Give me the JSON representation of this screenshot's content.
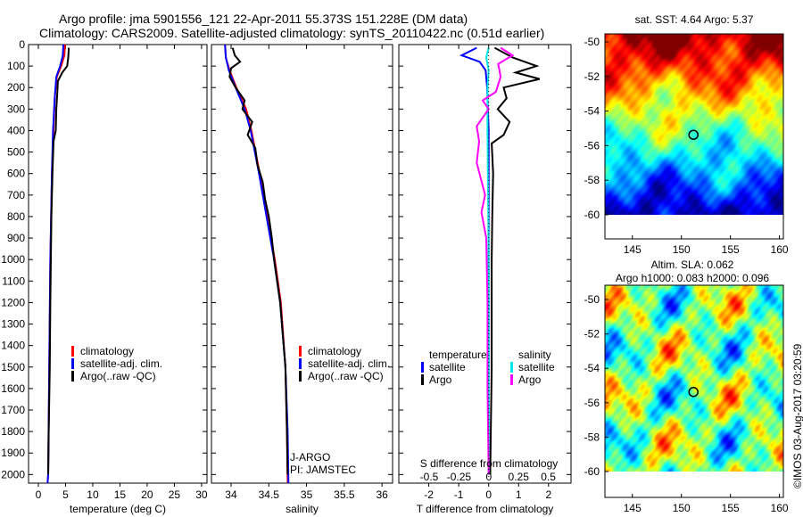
{
  "title_line1": "Argo profile: jma 5901556_121 22-Apr-2011 55.373S 151.228E (DM data)",
  "title_line2": "Climatology: CARS2009. Satellite-adjusted climatology: synTS_20110422.nc (0.51d earlier)",
  "timestamp": "©IMOS 03-Aug-2017 03:20:59",
  "colors": {
    "climatology": "#ff0000",
    "satellite": "#0000ff",
    "argo": "#000000",
    "sat_salinity": "#00e5e5",
    "argo_salinity": "#ff00ff"
  },
  "chart_data": [
    {
      "type": "line",
      "xlabel": "temperature (deg C)",
      "ylabel": "",
      "xlim": [
        -1.8,
        31
      ],
      "ylim": [
        2040,
        0
      ],
      "xticks": [
        "0",
        "5",
        "10",
        "15",
        "20",
        "25",
        "30"
      ],
      "yticks": [
        "0",
        "100",
        "200",
        "300",
        "400",
        "500",
        "600",
        "700",
        "800",
        "900",
        "1000",
        "1100",
        "1200",
        "1300",
        "1400",
        "1500",
        "1600",
        "1700",
        "1800",
        "1900",
        "2000"
      ],
      "legend": [
        "climatology",
        "satellite-adj. clim.",
        "Argo(..raw -QC)"
      ],
      "series": [
        {
          "name": "climatology",
          "color": "#ff0000",
          "points": [
            [
              0,
              4.9
            ],
            [
              50,
              4.8
            ],
            [
              100,
              4.2
            ],
            [
              150,
              3.4
            ],
            [
              250,
              3.0
            ],
            [
              400,
              2.8
            ],
            [
              600,
              2.5
            ],
            [
              1000,
              2.2
            ],
            [
              1500,
              2.0
            ],
            [
              2000,
              1.8
            ],
            [
              2040,
              1.7
            ]
          ]
        },
        {
          "name": "satellite-adj. clim.",
          "color": "#0000ff",
          "points": [
            [
              0,
              4.6
            ],
            [
              50,
              4.5
            ],
            [
              100,
              4.0
            ],
            [
              150,
              3.3
            ],
            [
              250,
              3.0
            ],
            [
              400,
              2.7
            ],
            [
              600,
              2.5
            ],
            [
              1000,
              2.2
            ],
            [
              1500,
              2.0
            ],
            [
              2000,
              1.8
            ],
            [
              2040,
              1.7
            ]
          ]
        },
        {
          "name": "Argo(..raw -QC)",
          "color": "#000000",
          "points": [
            [
              15,
              5.6
            ],
            [
              60,
              5.5
            ],
            [
              100,
              5.3
            ],
            [
              130,
              4.4
            ],
            [
              170,
              3.6
            ],
            [
              220,
              3.5
            ],
            [
              300,
              3.3
            ],
            [
              400,
              3.2
            ],
            [
              450,
              2.8
            ],
            [
              600,
              2.6
            ],
            [
              800,
              2.4
            ],
            [
              1000,
              2.3
            ],
            [
              1200,
              2.2
            ],
            [
              1500,
              2.1
            ],
            [
              1800,
              1.9
            ],
            [
              2000,
              1.8
            ]
          ]
        }
      ]
    },
    {
      "type": "line",
      "xlabel": "salinity",
      "xlim": [
        33.74,
        36.14
      ],
      "ylim": [
        2040,
        0
      ],
      "xticks": [
        "34",
        "34.5",
        "35",
        "35.5",
        "36"
      ],
      "legend": [
        "climatology",
        "satellite-adj. clim.",
        "Argo(..raw -QC)"
      ],
      "annotation": [
        "J-ARGO",
        "PI: JAMSTEC"
      ],
      "series": [
        {
          "name": "climatology",
          "color": "#ff0000",
          "points": [
            [
              0,
              33.92
            ],
            [
              60,
              33.93
            ],
            [
              120,
              33.98
            ],
            [
              200,
              34.07
            ],
            [
              300,
              34.2
            ],
            [
              400,
              34.27
            ],
            [
              600,
              34.38
            ],
            [
              800,
              34.48
            ],
            [
              1000,
              34.58
            ],
            [
              1200,
              34.66
            ],
            [
              1500,
              34.72
            ],
            [
              1800,
              34.74
            ],
            [
              2040,
              34.75
            ]
          ]
        },
        {
          "name": "satellite-adj. clim.",
          "color": "#0000ff",
          "points": [
            [
              0,
              33.92
            ],
            [
              60,
              33.93
            ],
            [
              120,
              33.97
            ],
            [
              200,
              34.06
            ],
            [
              300,
              34.18
            ],
            [
              400,
              34.26
            ],
            [
              600,
              34.37
            ],
            [
              800,
              34.47
            ],
            [
              1000,
              34.57
            ],
            [
              1200,
              34.65
            ],
            [
              1500,
              34.72
            ],
            [
              1800,
              34.75
            ],
            [
              2040,
              34.76
            ]
          ]
        },
        {
          "name": "Argo(..raw -QC)",
          "color": "#000000",
          "points": [
            [
              15,
              34.02
            ],
            [
              50,
              34.05
            ],
            [
              80,
              34.12
            ],
            [
              110,
              34.0
            ],
            [
              150,
              33.98
            ],
            [
              200,
              34.06
            ],
            [
              260,
              34.18
            ],
            [
              300,
              34.15
            ],
            [
              360,
              34.28
            ],
            [
              420,
              34.22
            ],
            [
              480,
              34.32
            ],
            [
              560,
              34.35
            ],
            [
              640,
              34.42
            ],
            [
              720,
              34.45
            ],
            [
              800,
              34.5
            ],
            [
              900,
              34.54
            ],
            [
              1000,
              34.57
            ],
            [
              1200,
              34.65
            ],
            [
              1500,
              34.72
            ],
            [
              1800,
              34.74
            ],
            [
              2000,
              34.75
            ]
          ]
        }
      ]
    },
    {
      "type": "line",
      "xlabel": "T difference from climatology",
      "xlabel2": "S difference from climatology",
      "xlim": [
        -3.0,
        2.75
      ],
      "ylim": [
        2040,
        0
      ],
      "xticks": [
        "-2",
        "-1",
        "0",
        "1",
        "2"
      ],
      "xticks2": [
        "-0.5",
        "-0.25",
        "0",
        "0.25",
        "0.5"
      ],
      "legend_titles": [
        "temperature",
        "salinity"
      ],
      "legend": [
        "satellite",
        "Argo",
        "satellite",
        "Argo"
      ],
      "series": [
        {
          "name": "temperature satellite",
          "color": "#0000ff",
          "axis": "T",
          "points": [
            [
              15,
              -0.4
            ],
            [
              50,
              -0.9
            ],
            [
              80,
              -0.3
            ],
            [
              120,
              -0.1
            ],
            [
              200,
              -0.05
            ],
            [
              400,
              0.0
            ],
            [
              1000,
              0.0
            ],
            [
              2000,
              0.0
            ]
          ]
        },
        {
          "name": "temperature Argo",
          "color": "#000000",
          "axis": "T",
          "points": [
            [
              15,
              0.2
            ],
            [
              60,
              0.8
            ],
            [
              100,
              1.6
            ],
            [
              130,
              0.9
            ],
            [
              160,
              1.7
            ],
            [
              200,
              0.5
            ],
            [
              250,
              0.6
            ],
            [
              300,
              0.3
            ],
            [
              360,
              0.7
            ],
            [
              420,
              0.5
            ],
            [
              460,
              0.1
            ],
            [
              600,
              0.15
            ],
            [
              800,
              0.12
            ],
            [
              1000,
              0.1
            ],
            [
              1500,
              0.1
            ],
            [
              2000,
              0.05
            ]
          ]
        },
        {
          "name": "salinity satellite",
          "color": "#00e5e5",
          "axis": "S",
          "points": [
            [
              15,
              0.0
            ],
            [
              60,
              -0.02
            ],
            [
              120,
              0.0
            ],
            [
              200,
              -0.01
            ],
            [
              400,
              -0.01
            ],
            [
              1000,
              0.0
            ],
            [
              2000,
              0.0
            ]
          ]
        },
        {
          "name": "salinity Argo",
          "color": "#ff00ff",
          "axis": "S",
          "points": [
            [
              15,
              0.1
            ],
            [
              50,
              0.2
            ],
            [
              90,
              0.08
            ],
            [
              150,
              0.1
            ],
            [
              220,
              0.06
            ],
            [
              260,
              -0.05
            ],
            [
              300,
              0.0
            ],
            [
              380,
              -0.1
            ],
            [
              450,
              -0.08
            ],
            [
              550,
              -0.1
            ],
            [
              700,
              -0.03
            ],
            [
              780,
              -0.06
            ],
            [
              900,
              -0.02
            ],
            [
              1200,
              -0.01
            ],
            [
              1600,
              -0.01
            ],
            [
              2000,
              0.0
            ]
          ]
        }
      ]
    },
    {
      "type": "heatmap",
      "title": "sat. SST: 4.64  Argo: 5.37",
      "xlim": [
        142.2,
        160.4
      ],
      "ylim": [
        -60,
        -49.5
      ],
      "xticks": [
        "145",
        "150",
        "155",
        "160"
      ],
      "yticks": [
        "-50",
        "-52",
        "-54",
        "-56",
        "-58",
        "-60"
      ],
      "marker": [
        151.228,
        -55.373
      ]
    },
    {
      "type": "heatmap",
      "title": "Altim. SLA: 0.062",
      "subtitle": "Argo h1000: 0.083 h2000: 0.096",
      "xlim": [
        142.2,
        160.4
      ],
      "ylim": [
        -60,
        -49.5
      ],
      "xticks": [
        "145",
        "150",
        "155",
        "160"
      ],
      "yticks": [
        "-50",
        "-52",
        "-54",
        "-56",
        "-58",
        "-60"
      ],
      "marker": [
        151.228,
        -55.373
      ]
    }
  ]
}
